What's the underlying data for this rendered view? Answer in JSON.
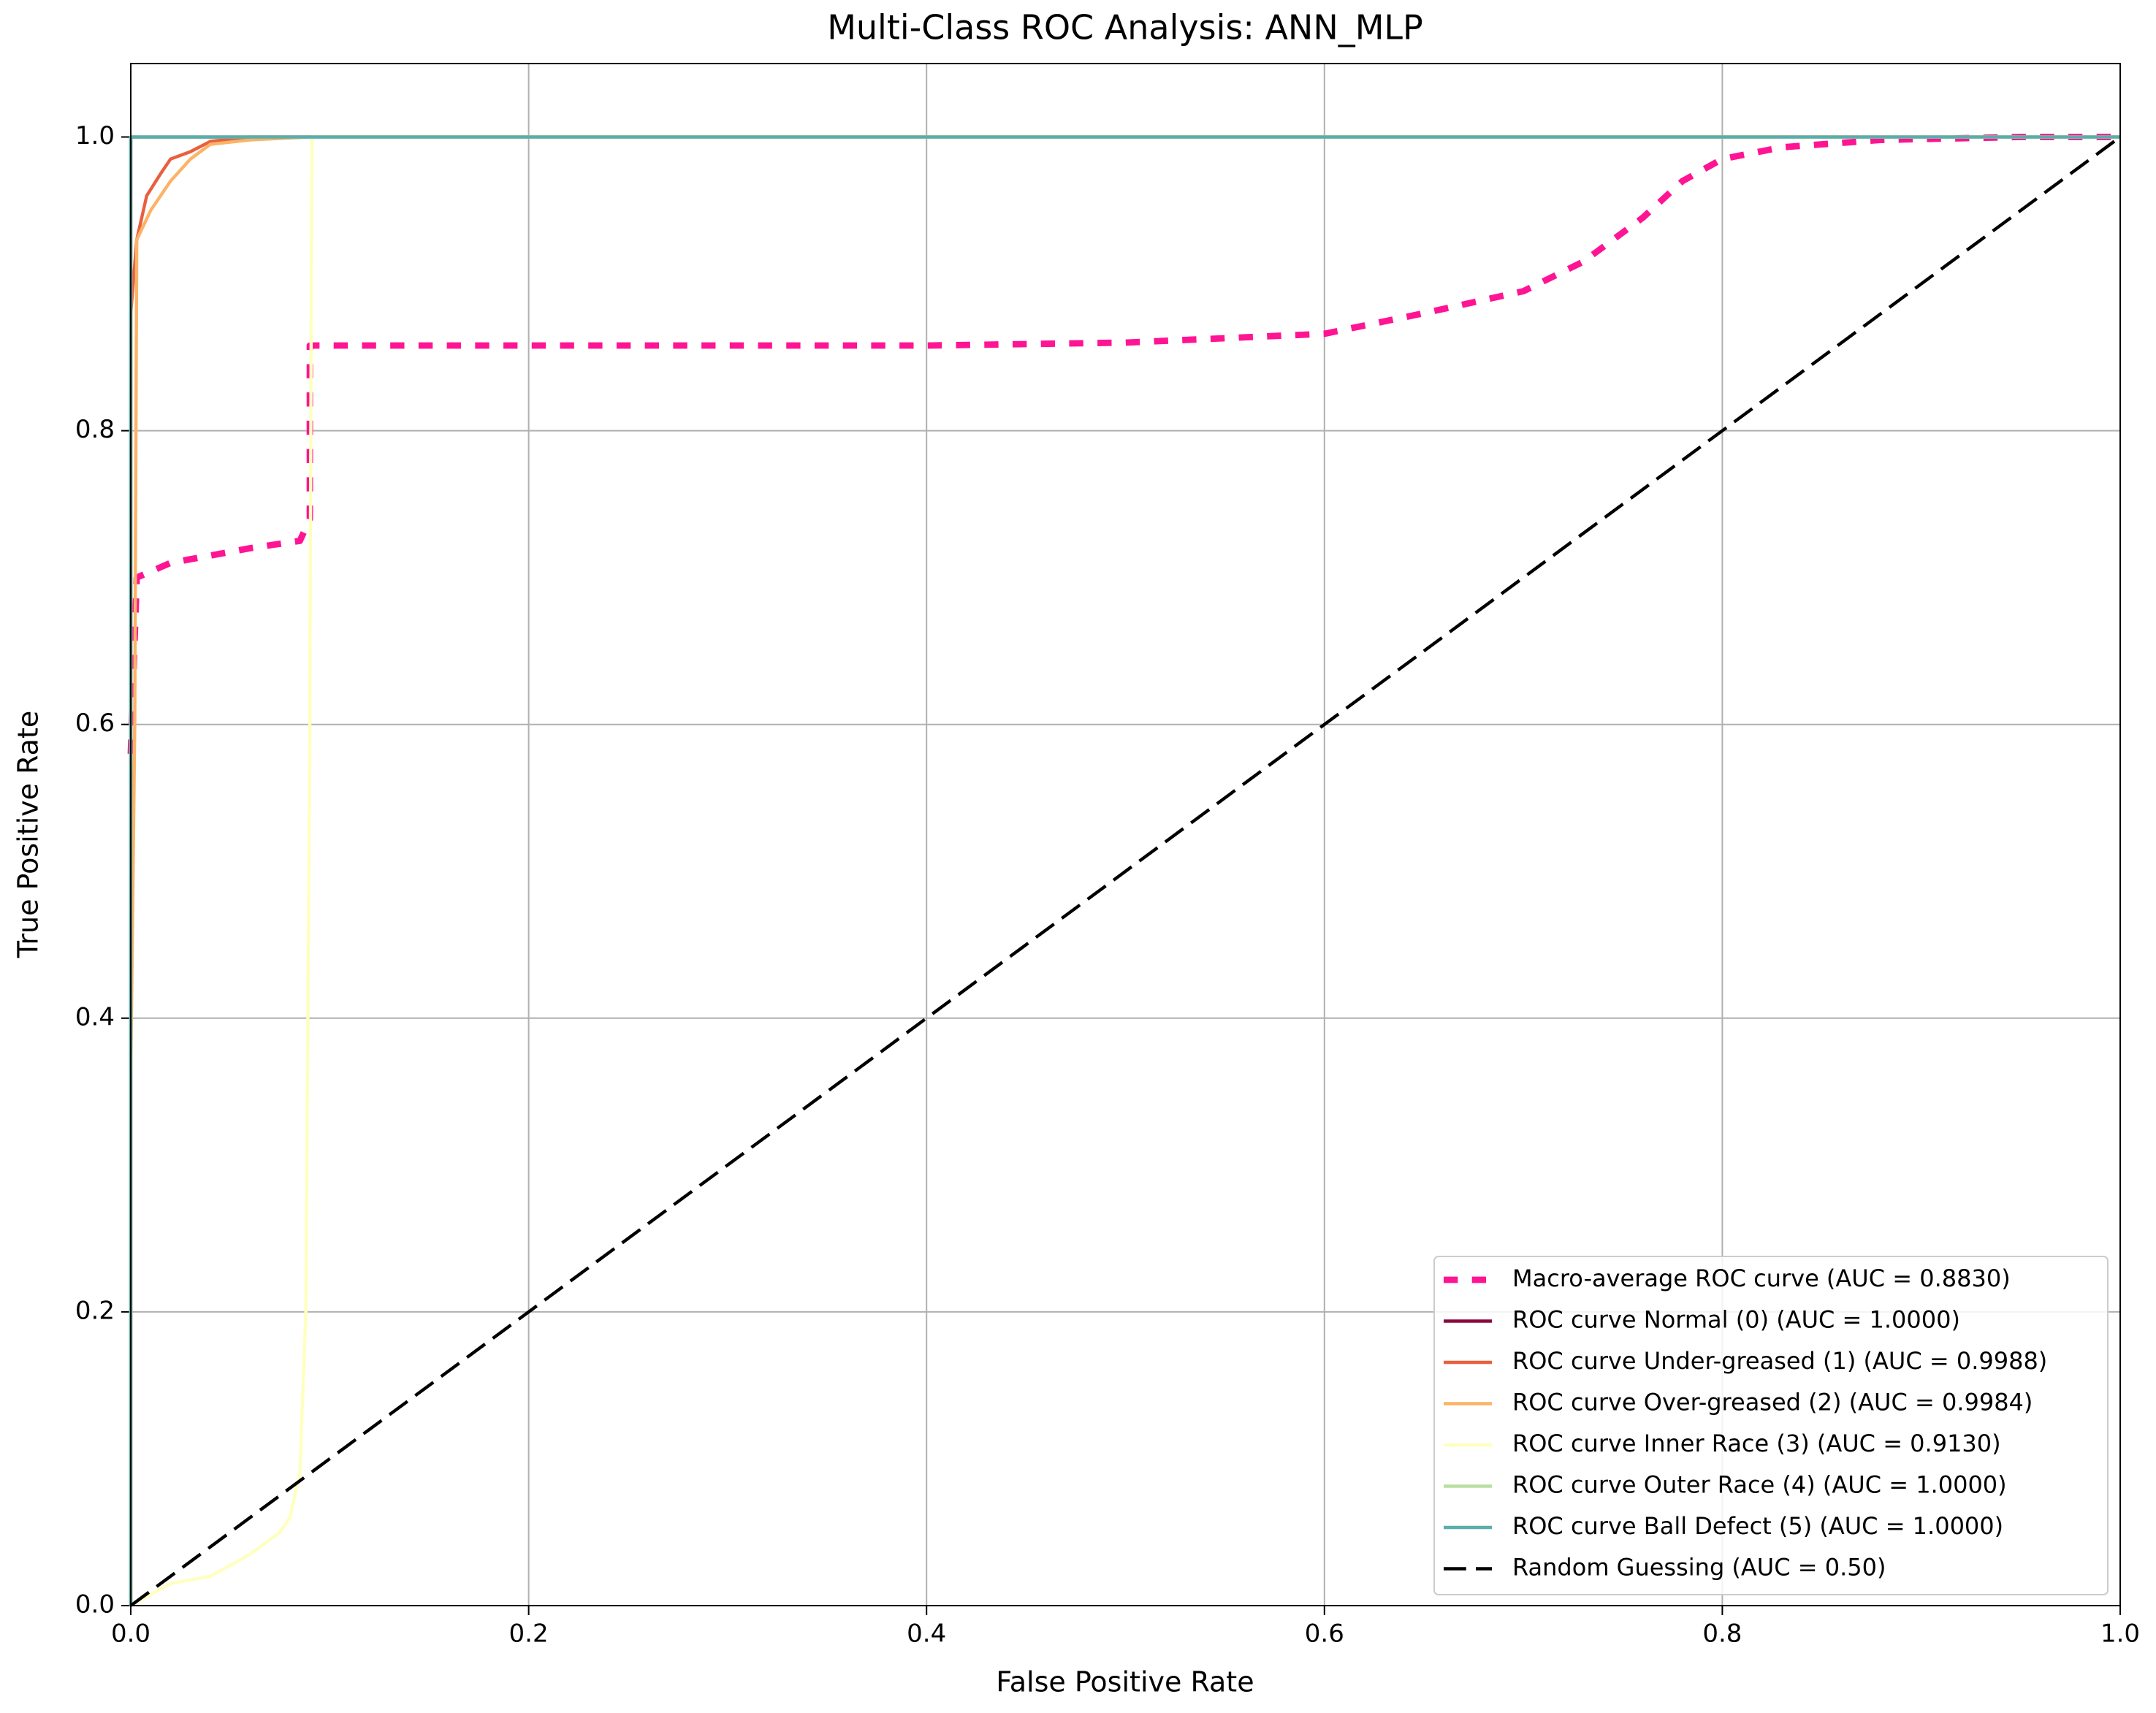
{
  "chart_data": {
    "type": "line",
    "title": "Multi-Class ROC Analysis: ANN_MLP",
    "x_label": "False Positive Rate",
    "y_label": "True Positive Rate",
    "xlim": [
      0,
      1
    ],
    "ylim": [
      0,
      1.05
    ],
    "xticks": [
      {
        "value": 0,
        "label": "0.0"
      },
      0.2,
      0.4,
      0.6,
      0.8,
      {
        "value": 1,
        "label": "1.0"
      }
    ],
    "yticks": [
      {
        "value": 0,
        "label": "0.0"
      },
      0.2,
      0.4,
      0.6,
      0.8,
      {
        "value": 1,
        "label": "1.0"
      }
    ],
    "grid": true,
    "legend": "lower right",
    "series": [
      {
        "name": "Macro-average ROC curve (AUC = 0.8830)",
        "color": "#ff1493",
        "style": "dotted",
        "width": 4,
        "x": [
          0,
          0.003,
          0.02,
          0.04,
          0.06,
          0.085,
          0.09,
          0.09,
          0.2,
          0.4,
          0.5,
          0.6,
          0.65,
          0.7,
          0.73,
          0.76,
          0.78,
          0.8,
          0.83,
          0.88,
          0.95,
          1
        ],
        "values": [
          0.58,
          0.7,
          0.71,
          0.715,
          0.72,
          0.725,
          0.74,
          0.858,
          0.858,
          0.858,
          0.86,
          0.866,
          0.88,
          0.895,
          0.915,
          0.945,
          0.97,
          0.985,
          0.993,
          0.998,
          1,
          1
        ]
      },
      {
        "name": "ROC curve Normal (0) (AUC = 1.0000)",
        "color": "#8b0a40",
        "style": "solid",
        "width": 2,
        "x": [
          0,
          0,
          1
        ],
        "values": [
          0,
          1,
          1
        ]
      },
      {
        "name": "ROC curve Under-greased (1) (AUC = 0.9988)",
        "color": "#e8603f",
        "style": "solid",
        "width": 2,
        "x": [
          0,
          0,
          0.003,
          0.008,
          0.015,
          0.02,
          0.03,
          0.04,
          0.06,
          1
        ],
        "values": [
          0,
          0.88,
          0.93,
          0.96,
          0.975,
          0.985,
          0.99,
          0.997,
          1,
          1
        ]
      },
      {
        "name": "ROC curve Over-greased (2) (AUC = 0.9984)",
        "color": "#fdb366",
        "style": "solid",
        "width": 2,
        "x": [
          0,
          0,
          0.002,
          0.003,
          0.01,
          0.02,
          0.03,
          0.04,
          0.06,
          0.09,
          1
        ],
        "values": [
          0,
          0.36,
          0.6,
          0.93,
          0.95,
          0.97,
          0.985,
          0.995,
          0.998,
          1,
          1
        ]
      },
      {
        "name": "ROC curve Inner Race (3) (AUC = 0.9130)",
        "color": "#ffffbf",
        "style": "solid",
        "width": 2,
        "x": [
          0,
          0.02,
          0.04,
          0.06,
          0.075,
          0.08,
          0.085,
          0.088,
          0.09,
          0.091,
          1
        ],
        "values": [
          0,
          0.015,
          0.02,
          0.035,
          0.05,
          0.06,
          0.09,
          0.2,
          0.6,
          1,
          1
        ]
      },
      {
        "name": "ROC curve Outer Race (4) (AUC = 1.0000)",
        "color": "#b8e0a0",
        "style": "solid",
        "width": 2,
        "x": [
          0,
          0,
          1
        ],
        "values": [
          0,
          1,
          1
        ]
      },
      {
        "name": "ROC curve Ball Defect (5) (AUC = 1.0000)",
        "color": "#5aaeab",
        "style": "solid",
        "width": 2,
        "x": [
          0,
          0,
          1
        ],
        "values": [
          0,
          1,
          1
        ]
      },
      {
        "name": "Random Guessing (AUC = 0.50)",
        "color": "#000000",
        "style": "dashed",
        "width": 2,
        "x": [
          0,
          1
        ],
        "values": [
          0,
          1
        ]
      }
    ]
  }
}
